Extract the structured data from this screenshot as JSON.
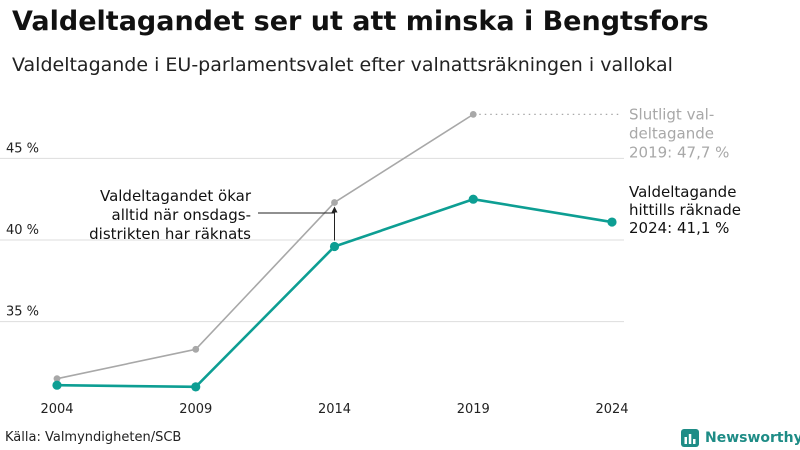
{
  "title": "Valdeltagandet ser ut att minska i Bengtsfors",
  "subtitle": "Valdeltagande i EU-parlamentsvalet efter valnattsräkningen i vallokal",
  "source": "Källa: Valmyndigheten/SCB",
  "brand": "Newsworthy",
  "colors": {
    "final": "#a8a8a8",
    "current": "#0d9e93",
    "brand": "#1e8c86"
  },
  "chart_data": {
    "type": "line",
    "x": [
      2004,
      2009,
      2014,
      2019,
      2024
    ],
    "x_tick_labels": [
      "2004",
      "2009",
      "2014",
      "2019",
      "2024"
    ],
    "y_ticks": [
      35,
      40,
      45
    ],
    "y_tick_labels": [
      "35 %",
      "40 %",
      "45 %"
    ],
    "ylim": [
      30.5,
      49.5
    ],
    "grid": "horizontal",
    "series": [
      {
        "key": "final",
        "values": [
          31.5,
          33.3,
          42.3,
          47.7,
          null
        ]
      },
      {
        "key": "current",
        "values": [
          31.1,
          31.0,
          39.6,
          42.5,
          41.1
        ]
      }
    ],
    "annotations": {
      "final_end": [
        "Slutligt val-",
        "deltagande",
        "2019: 47,7 %"
      ],
      "current_end": [
        "Valdeltagande",
        "hittills räknade",
        "2024: 41,1 %"
      ],
      "note": [
        "Valdeltagandet ökar",
        "alltid när onsdags-",
        "distrikten har räknats"
      ]
    }
  }
}
